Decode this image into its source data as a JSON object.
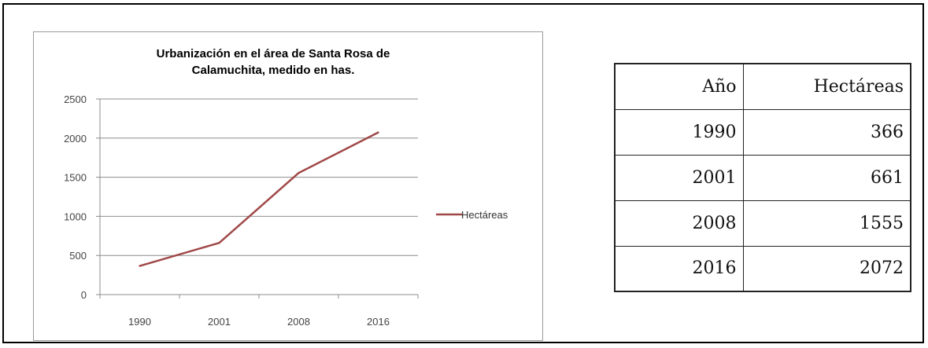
{
  "chart_data": {
    "type": "line",
    "title_lines": [
      "Urbanización en  el área de Santa Rosa de",
      "Calamuchita, medido en has."
    ],
    "categories": [
      "1990",
      "2001",
      "2008",
      "2016"
    ],
    "series": [
      {
        "name": "Hectáreas",
        "values": [
          366,
          661,
          1555,
          2072
        ]
      }
    ],
    "yticks": [
      "0",
      "500",
      "1000",
      "1500",
      "2000",
      "2500"
    ],
    "ylim": [
      0,
      2500
    ],
    "grid": true,
    "legend_position": "right",
    "line_color": "#a04848"
  },
  "table": {
    "headers": [
      "Año",
      "Hectáreas"
    ],
    "rows": [
      [
        "1990",
        "366"
      ],
      [
        "2001",
        "661"
      ],
      [
        "2008",
        "1555"
      ],
      [
        "2016",
        "2072"
      ]
    ]
  }
}
